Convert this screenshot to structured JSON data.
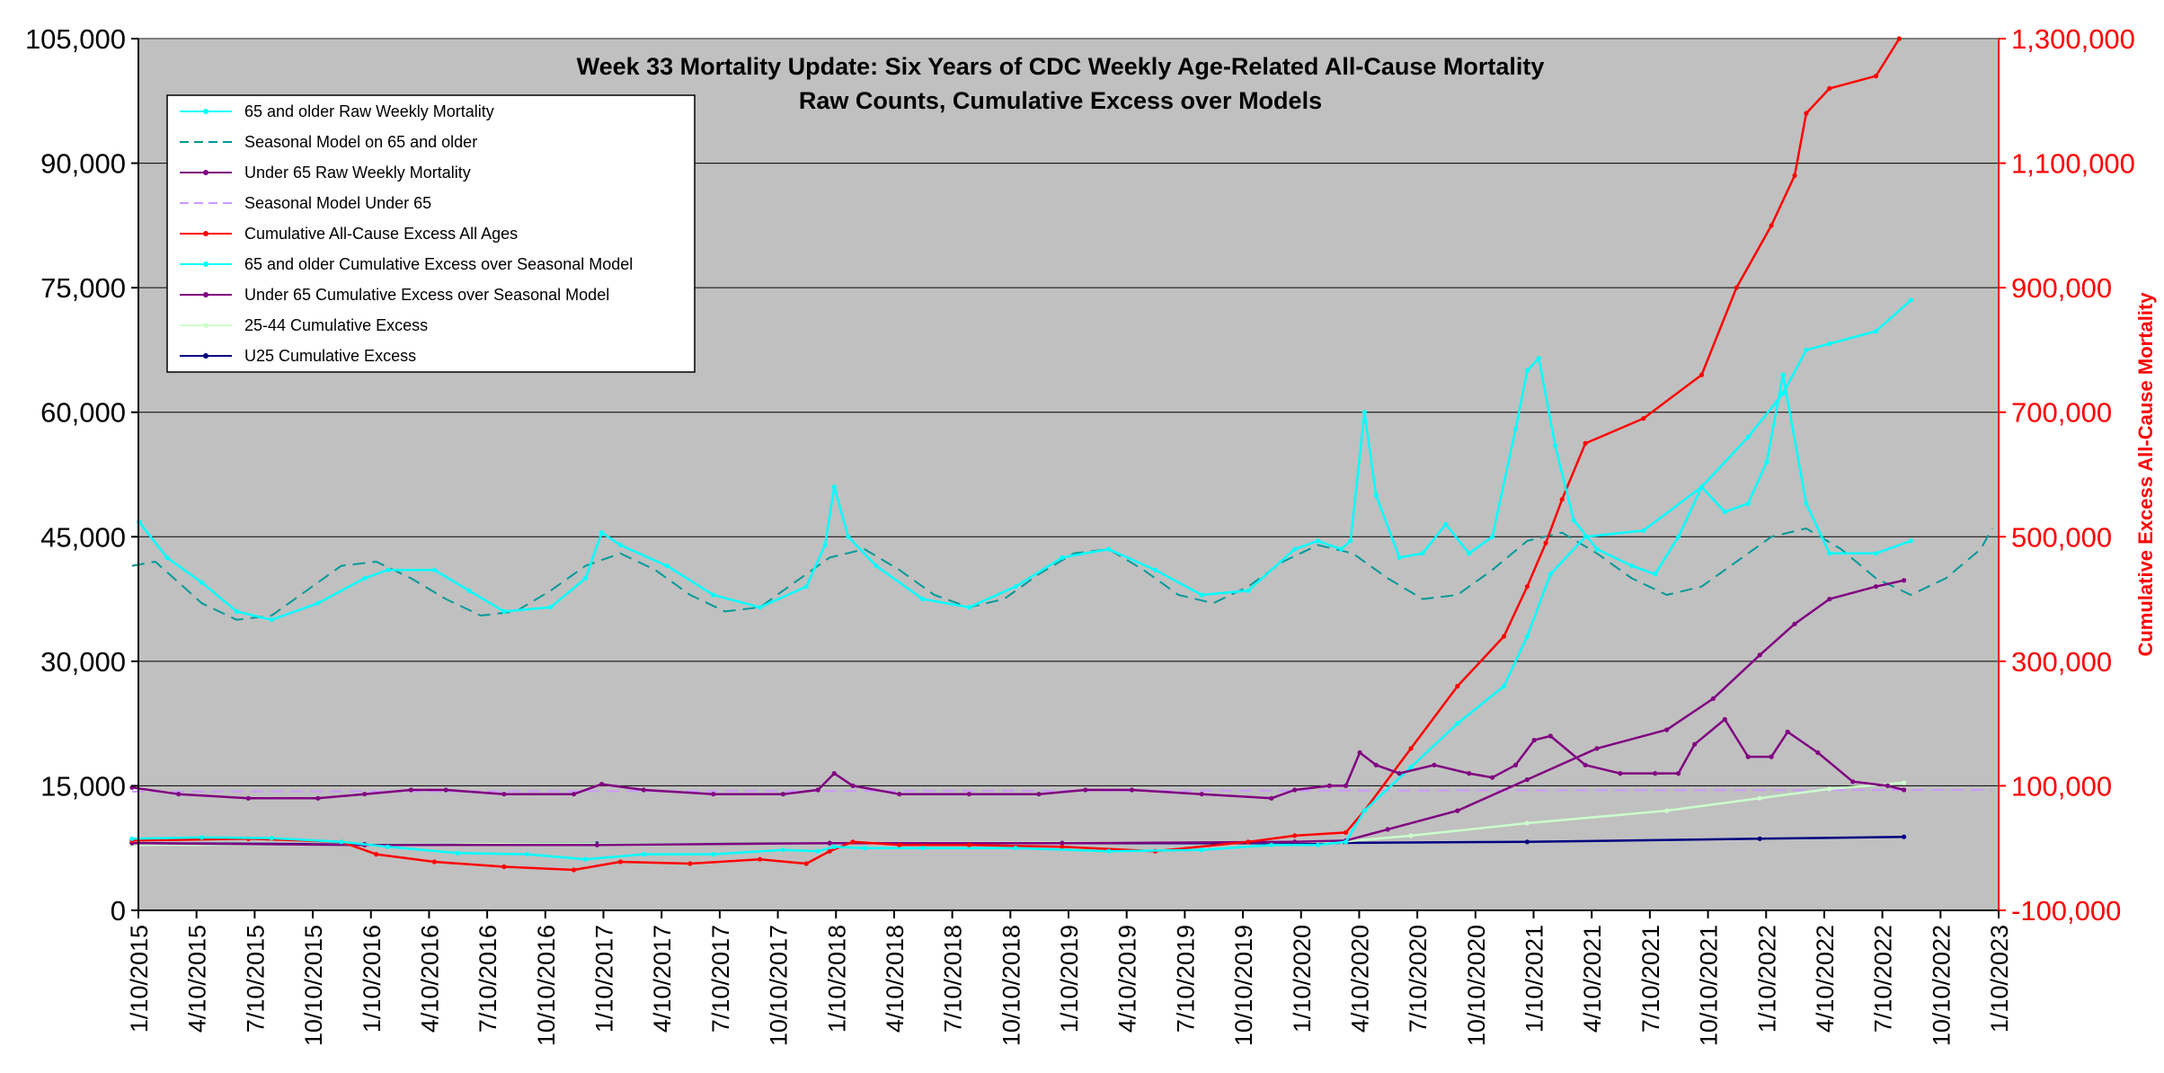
{
  "chart_data": {
    "type": "line",
    "title": "Week 33 Mortality Update: Six Years of CDC Weekly Age-Related All-Cause Mortality",
    "subtitle": "Raw Counts, Cumulative Excess over Models",
    "ylabel_left": "",
    "ylabel_right": "Cumulative Excess All-Cause Mortality",
    "xlabel": "",
    "ylim_left": [
      0,
      105000
    ],
    "ylim_right": [
      -100000,
      1300000
    ],
    "xlim": [
      "2015-01-10",
      "2023-01-10"
    ],
    "grid": "horizontal",
    "legend_position": "top-left",
    "y_ticks_left": [
      "0",
      "15,000",
      "30,000",
      "45,000",
      "60,000",
      "75,000",
      "90,000",
      "105,000"
    ],
    "y_ticks_right": [
      "-100,000",
      "100,000",
      "300,000",
      "500,000",
      "700,000",
      "900,000",
      "1,100,000",
      "1,300,000"
    ],
    "x_ticks": [
      "1/10/2015",
      "4/10/2015",
      "7/10/2015",
      "10/10/2015",
      "1/10/2016",
      "4/10/2016",
      "7/10/2016",
      "10/10/2016",
      "1/10/2017",
      "4/10/2017",
      "7/10/2017",
      "10/10/2017",
      "1/10/2018",
      "4/10/2018",
      "7/10/2018",
      "10/10/2018",
      "1/10/2019",
      "4/10/2019",
      "7/10/2019",
      "10/10/2019",
      "1/10/2020",
      "4/10/2020",
      "7/10/2020",
      "10/10/2020",
      "1/10/2021",
      "4/10/2021",
      "7/10/2021",
      "10/10/2021",
      "1/10/2022",
      "4/10/2022",
      "7/10/2022",
      "10/10/2022",
      "1/10/2023"
    ],
    "x_unit": "years",
    "series": [
      {
        "name": "65 and older Raw Weekly Mortality",
        "axis": "left",
        "color": "#00ffff",
        "style": "solid-marker",
        "x": [
          2015.03,
          2015.15,
          2015.3,
          2015.45,
          2015.6,
          2015.8,
          2016.0,
          2016.1,
          2016.3,
          2016.45,
          2016.6,
          2016.8,
          2016.95,
          2017.02,
          2017.1,
          2017.3,
          2017.5,
          2017.7,
          2017.9,
          2017.98,
          2018.02,
          2018.08,
          2018.2,
          2018.4,
          2018.6,
          2018.8,
          2019.0,
          2019.2,
          2019.4,
          2019.6,
          2019.8,
          2020.0,
          2020.1,
          2020.2,
          2020.24,
          2020.3,
          2020.35,
          2020.45,
          2020.55,
          2020.65,
          2020.75,
          2020.85,
          2020.95,
          2021.0,
          2021.05,
          2021.12,
          2021.2,
          2021.3,
          2021.45,
          2021.55,
          2021.65,
          2021.75,
          2021.85,
          2021.95,
          2022.03,
          2022.1,
          2022.2,
          2022.3,
          2022.5,
          2022.65
        ],
        "y": [
          46800,
          42500,
          39500,
          36000,
          35000,
          37000,
          40000,
          41000,
          41000,
          38500,
          36000,
          36500,
          40000,
          45500,
          44000,
          41500,
          38000,
          36500,
          39000,
          44000,
          51000,
          45000,
          41500,
          37500,
          36500,
          39000,
          42500,
          43500,
          41000,
          38000,
          38500,
          43500,
          44500,
          43500,
          44500,
          60000,
          50000,
          42500,
          43000,
          46500,
          43000,
          45000,
          58000,
          65000,
          66500,
          56000,
          47000,
          43500,
          41500,
          40500,
          45000,
          51000,
          48000,
          49000,
          54000,
          64500,
          49000,
          43000,
          43000,
          44500
        ]
      },
      {
        "name": "Seasonal Model on 65 and older",
        "axis": "left",
        "color": "#009999",
        "style": "dashed",
        "x": [
          2015.0,
          2015.1,
          2015.2,
          2015.3,
          2015.45,
          2015.6,
          2015.75,
          2015.9,
          2016.05,
          2016.2,
          2016.35,
          2016.5,
          2016.65,
          2016.8,
          2016.95,
          2017.1,
          2017.25,
          2017.4,
          2017.55,
          2017.7,
          2017.85,
          2018.0,
          2018.15,
          2018.3,
          2018.45,
          2018.6,
          2018.75,
          2018.9,
          2019.05,
          2019.2,
          2019.35,
          2019.5,
          2019.65,
          2019.8,
          2019.95,
          2020.1,
          2020.25,
          2020.4,
          2020.55,
          2020.7,
          2020.85,
          2021.0,
          2021.15,
          2021.3,
          2021.45,
          2021.6,
          2021.75,
          2021.9,
          2022.05,
          2022.2,
          2022.35,
          2022.5,
          2022.65,
          2022.8,
          2022.95,
          2023.0
        ],
        "y": [
          41500,
          42000,
          39500,
          37000,
          35000,
          35500,
          38500,
          41500,
          42000,
          40000,
          37500,
          35500,
          36000,
          38500,
          41500,
          43000,
          41000,
          38000,
          36000,
          36500,
          39500,
          42500,
          43500,
          41000,
          38000,
          36500,
          37500,
          40500,
          43000,
          43500,
          41000,
          38000,
          37000,
          39000,
          42000,
          44000,
          43000,
          40000,
          37500,
          38000,
          41000,
          44500,
          45500,
          43000,
          40000,
          38000,
          39000,
          42000,
          45000,
          46000,
          43500,
          40000,
          38000,
          40000,
          43500,
          46000
        ]
      },
      {
        "name": "Under 65 Raw Weekly Mortality",
        "axis": "left",
        "color": "#800080",
        "style": "solid-marker",
        "x": [
          2015.0,
          2015.2,
          2015.5,
          2015.8,
          2016.0,
          2016.2,
          2016.35,
          2016.6,
          2016.9,
          2017.02,
          2017.2,
          2017.5,
          2017.8,
          2017.95,
          2018.02,
          2018.1,
          2018.3,
          2018.6,
          2018.9,
          2019.1,
          2019.3,
          2019.6,
          2019.9,
          2020.0,
          2020.15,
          2020.22,
          2020.28,
          2020.35,
          2020.45,
          2020.6,
          2020.75,
          2020.85,
          2020.95,
          2021.03,
          2021.1,
          2021.25,
          2021.4,
          2021.55,
          2021.65,
          2021.72,
          2021.85,
          2021.95,
          2022.05,
          2022.12,
          2022.25,
          2022.4,
          2022.55,
          2022.62
        ],
        "y": [
          14800,
          14000,
          13500,
          13500,
          14000,
          14500,
          14500,
          14000,
          14000,
          15200,
          14500,
          14000,
          14000,
          14500,
          16500,
          15000,
          14000,
          14000,
          14000,
          14500,
          14500,
          14000,
          13500,
          14500,
          15000,
          15000,
          19000,
          17500,
          16500,
          17500,
          16500,
          16000,
          17500,
          20500,
          21000,
          17500,
          16500,
          16500,
          16500,
          20000,
          23000,
          18500,
          18500,
          21500,
          19000,
          15500,
          15000,
          14500
        ]
      },
      {
        "name": "Seasonal Model Under 65",
        "axis": "left",
        "color": "#cc99ff",
        "style": "dashed",
        "x": [
          2015.0,
          2023.0
        ],
        "y": [
          14300,
          14500
        ]
      },
      {
        "name": "Cumulative All-Cause Excess All Ages",
        "axis": "right",
        "color": "#ff0000",
        "style": "solid-marker",
        "x": [
          2015.0,
          2015.5,
          2015.9,
          2016.05,
          2016.3,
          2016.6,
          2016.9,
          2017.1,
          2017.4,
          2017.7,
          2017.9,
          2018.0,
          2018.1,
          2018.3,
          2018.6,
          2019.0,
          2019.4,
          2019.8,
          2020.0,
          2020.22,
          2020.3,
          2020.5,
          2020.7,
          2020.9,
          2021.0,
          2021.08,
          2021.15,
          2021.25,
          2021.5,
          2021.75,
          2021.9,
          2022.05,
          2022.15,
          2022.2,
          2022.3,
          2022.5,
          2022.6
        ],
        "y": [
          12000,
          15000,
          10000,
          -10000,
          -22000,
          -30000,
          -35000,
          -22000,
          -25000,
          -18000,
          -25000,
          -5000,
          10000,
          5000,
          5000,
          2000,
          -5000,
          10000,
          20000,
          25000,
          60000,
          160000,
          260000,
          340000,
          420000,
          490000,
          560000,
          650000,
          690000,
          760000,
          900000,
          1000000,
          1080000,
          1180000,
          1220000,
          1240000,
          1300000
        ]
      },
      {
        "name": "65 and older Cumulative Excess over Seasonal Model",
        "axis": "right",
        "color": "#00ffff",
        "style": "solid-marker",
        "x": [
          2015.0,
          2015.3,
          2015.6,
          2015.9,
          2016.1,
          2016.4,
          2016.7,
          2016.95,
          2017.2,
          2017.5,
          2017.8,
          2017.95,
          2018.02,
          2018.15,
          2018.4,
          2018.8,
          2019.2,
          2019.6,
          2019.9,
          2020.1,
          2020.22,
          2020.3,
          2020.5,
          2020.7,
          2020.9,
          2021.0,
          2021.1,
          2021.25,
          2021.5,
          2021.75,
          2021.95,
          2022.1,
          2022.2,
          2022.3,
          2022.5,
          2022.65
        ],
        "y": [
          15000,
          17000,
          16000,
          10000,
          2000,
          -8000,
          -10000,
          -18000,
          -10000,
          -10000,
          -3000,
          -5000,
          2000,
          0,
          0,
          0,
          -5000,
          -3000,
          5000,
          5000,
          10000,
          60000,
          130000,
          200000,
          260000,
          340000,
          440000,
          500000,
          510000,
          580000,
          660000,
          730000,
          800000,
          810000,
          830000,
          880000
        ]
      },
      {
        "name": "Under 65 Cumulative Excess over Seasonal Model",
        "axis": "right",
        "color": "#800080",
        "style": "solid-marker",
        "x": [
          2015.0,
          2016.0,
          2017.0,
          2018.0,
          2019.0,
          2020.0,
          2020.22,
          2020.4,
          2020.7,
          2021.0,
          2021.3,
          2021.6,
          2021.8,
          2022.0,
          2022.15,
          2022.3,
          2022.5,
          2022.62
        ],
        "y": [
          8000,
          5000,
          5000,
          8000,
          8000,
          10000,
          12000,
          30000,
          60000,
          110000,
          160000,
          190000,
          240000,
          310000,
          360000,
          400000,
          420000,
          430000
        ]
      },
      {
        "name": "25-44 Cumulative Excess",
        "axis": "right",
        "color": "#ccffcc",
        "style": "solid-marker",
        "x": [
          2015.0,
          2020.2,
          2020.5,
          2021.0,
          2021.6,
          2022.0,
          2022.3,
          2022.62
        ],
        "y": [
          5000,
          10000,
          20000,
          40000,
          60000,
          80000,
          95000,
          105000
        ]
      },
      {
        "name": "U25 Cumulative Excess",
        "axis": "right",
        "color": "#000080",
        "style": "solid-marker",
        "x": [
          2015.0,
          2016.0,
          2017.0,
          2018.0,
          2019.0,
          2020.0,
          2021.0,
          2022.0,
          2022.62
        ],
        "y": [
          8000,
          6000,
          7000,
          8000,
          8000,
          8000,
          10000,
          15000,
          18000
        ]
      }
    ]
  }
}
